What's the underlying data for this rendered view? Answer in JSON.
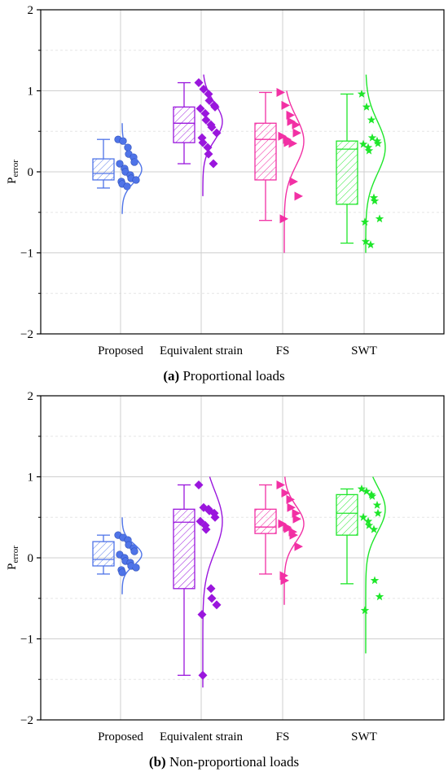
{
  "chart_data": [
    {
      "type": "box",
      "caption_letter": "(a)",
      "caption_text": " Proportional loads",
      "ylabel_main": "P",
      "ylabel_sub": "error",
      "ylim": [
        -2,
        2
      ],
      "yticks": [
        "2",
        "1",
        "0",
        "−1",
        "−2"
      ],
      "grid": true,
      "categories": [
        "Proposed",
        "Equivalent strain",
        "FS",
        "SWT"
      ],
      "series": [
        {
          "box": {
            "min": -0.2,
            "q1": -0.1,
            "median": -0.02,
            "q3": 0.16,
            "max": 0.4
          },
          "points": [
            0.4,
            0.38,
            0.3,
            0.22,
            0.18,
            0.12,
            0.1,
            0.04,
            0.0,
            -0.04,
            -0.08,
            -0.1,
            -0.12,
            -0.15,
            -0.18
          ],
          "density": {
            "lo": -0.52,
            "hi": 0.6,
            "mean": 0.03,
            "sd": 0.16
          }
        },
        {
          "box": {
            "min": 0.1,
            "q1": 0.36,
            "median": 0.6,
            "q3": 0.8,
            "max": 1.1
          },
          "points": [
            1.1,
            1.02,
            0.96,
            0.88,
            0.82,
            0.8,
            0.78,
            0.72,
            0.64,
            0.58,
            0.55,
            0.48,
            0.42,
            0.36,
            0.3,
            0.22,
            0.1
          ],
          "density": {
            "lo": -0.3,
            "hi": 1.2,
            "mean": 0.62,
            "sd": 0.23
          }
        },
        {
          "box": {
            "min": -0.6,
            "q1": -0.1,
            "median": 0.4,
            "q3": 0.6,
            "max": 0.98
          },
          "points": [
            0.98,
            0.82,
            0.7,
            0.62,
            0.58,
            0.48,
            0.44,
            0.4,
            0.36,
            0.35,
            -0.12,
            -0.3,
            -0.58
          ],
          "density": {
            "lo": -1.0,
            "hi": 1.0,
            "mean": 0.38,
            "sd": 0.3
          }
        },
        {
          "box": {
            "min": -0.88,
            "q1": -0.4,
            "median": 0.28,
            "q3": 0.38,
            "max": 0.96
          },
          "points": [
            0.96,
            0.8,
            0.64,
            0.42,
            0.38,
            0.35,
            0.34,
            0.3,
            0.26,
            -0.32,
            -0.36,
            -0.58,
            -0.62,
            -0.86,
            -0.9
          ],
          "density": {
            "lo": -1.0,
            "hi": 1.2,
            "mean": 0.3,
            "sd": 0.32
          }
        }
      ]
    },
    {
      "type": "box",
      "caption_letter": "(b)",
      "caption_text": " Non-proportional loads",
      "ylabel_main": "P",
      "ylabel_sub": "error",
      "ylim": [
        -2,
        2
      ],
      "yticks": [
        "2",
        "1",
        "0",
        "−1",
        "−2"
      ],
      "grid": true,
      "categories": [
        "Proposed",
        "Equivalent strain",
        "FS",
        "SWT"
      ],
      "series": [
        {
          "box": {
            "min": -0.2,
            "q1": -0.1,
            "median": -0.02,
            "q3": 0.2,
            "max": 0.28
          },
          "points": [
            0.28,
            0.25,
            0.22,
            0.16,
            0.12,
            0.08,
            0.04,
            0.0,
            -0.04,
            -0.06,
            -0.1,
            -0.12,
            -0.15,
            -0.18
          ],
          "density": {
            "lo": -0.45,
            "hi": 0.5,
            "mean": 0.04,
            "sd": 0.13
          }
        },
        {
          "box": {
            "min": -1.45,
            "q1": -0.38,
            "median": 0.44,
            "q3": 0.6,
            "max": 0.9
          },
          "points": [
            0.9,
            0.62,
            0.6,
            0.58,
            0.55,
            0.5,
            0.45,
            0.4,
            0.35,
            -0.38,
            -0.5,
            -0.58,
            -0.7,
            -1.45
          ],
          "density": {
            "lo": -1.6,
            "hi": 1.0,
            "mean": 0.45,
            "sd": 0.38
          }
        },
        {
          "box": {
            "min": -0.2,
            "q1": 0.3,
            "median": 0.38,
            "q3": 0.6,
            "max": 0.9
          },
          "points": [
            0.9,
            0.8,
            0.72,
            0.62,
            0.55,
            0.48,
            0.42,
            0.38,
            0.36,
            0.32,
            0.28,
            0.14,
            -0.22,
            -0.28
          ],
          "density": {
            "lo": -0.58,
            "hi": 1.0,
            "mean": 0.42,
            "sd": 0.22
          }
        },
        {
          "box": {
            "min": -0.32,
            "q1": 0.28,
            "median": 0.55,
            "q3": 0.78,
            "max": 0.85
          },
          "points": [
            0.85,
            0.82,
            0.78,
            0.76,
            0.65,
            0.55,
            0.5,
            0.45,
            0.4,
            0.35,
            -0.28,
            -0.48,
            -0.65
          ],
          "density": {
            "lo": -1.18,
            "hi": 1.0,
            "mean": 0.6,
            "sd": 0.28
          }
        }
      ]
    }
  ],
  "colors": [
    "#4f74e8",
    "#9a16dd",
    "#f230a4",
    "#1ee62a"
  ],
  "markers": [
    "circle",
    "diamond",
    "triangle-right",
    "star"
  ]
}
